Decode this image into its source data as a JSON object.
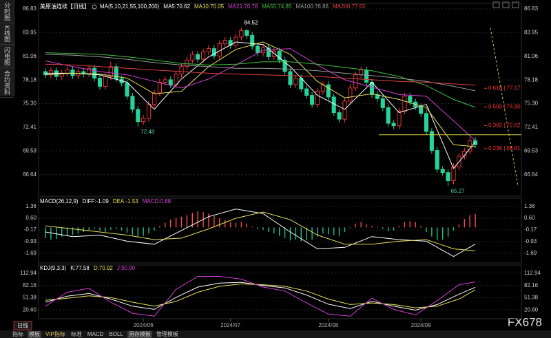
{
  "sidebar": [
    "分时图",
    "K线图",
    "闪电图",
    "合约资料"
  ],
  "toolbar": {
    "period": "日线",
    "tabs": [
      "指标",
      "模板",
      "VIP指标",
      "标准",
      "MACD",
      "BOLL",
      "另存模板",
      "管理模板"
    ]
  },
  "watermark": "FX678",
  "chart_data": [
    {
      "type": "candlestick",
      "title": "美原油连续【日线】",
      "indicator": "MA(5,10,21,55,100,200)",
      "categories": [
        null,
        null,
        null,
        null,
        null,
        null,
        null,
        null,
        null,
        null,
        null,
        null,
        null,
        null,
        null,
        null,
        null,
        null,
        "2024/06",
        null,
        null,
        null,
        null,
        null,
        null,
        null,
        null,
        null,
        null,
        null,
        null,
        null,
        null,
        null,
        "2024/07",
        null,
        null,
        null,
        null,
        null,
        null,
        null,
        null,
        null,
        null,
        null,
        null,
        null,
        null,
        null,
        null,
        null,
        "2024/08",
        null,
        null,
        null,
        null,
        null,
        null,
        null,
        null,
        null,
        null,
        null,
        null,
        null,
        null,
        null,
        null,
        "2024/09",
        null,
        null,
        null,
        null,
        null,
        null,
        null,
        null,
        null,
        null
      ],
      "open": [
        79.2,
        78.8,
        79.3,
        78.6,
        79.0,
        79.4,
        78.7,
        79.2,
        78.9,
        79.6,
        78.4,
        77.4,
        78.6,
        79.8,
        78.3,
        77.8,
        76.2,
        74.6,
        73.1,
        73.5,
        75.2,
        76.6,
        77.9,
        78.2,
        77.6,
        78.9,
        79.8,
        80.6,
        81.3,
        80.7,
        81.6,
        82.0,
        81.1,
        82.6,
        83.0,
        82.4,
        83.4,
        84.2,
        83.6,
        82.3,
        81.5,
        82.1,
        81.0,
        81.7,
        80.6,
        79.2,
        77.6,
        78.4,
        77.1,
        76.3,
        75.2,
        76.8,
        77.6,
        76.1,
        74.2,
        73.4,
        75.6,
        77.2,
        78.8,
        79.4,
        77.9,
        76.4,
        75.9,
        74.8,
        72.9,
        72.6,
        74.4,
        76.2,
        75.5,
        74.9,
        74.1,
        71.9,
        69.6,
        67.3,
        66.9,
        65.9,
        67.6,
        68.9,
        69.5,
        70.8
      ],
      "high": [
        79.6,
        79.7,
        79.7,
        79.4,
        79.8,
        79.8,
        79.6,
        79.6,
        80.0,
        80.0,
        78.8,
        79.0,
        80.4,
        80.2,
        78.7,
        78.2,
        76.6,
        75.0,
        73.9,
        75.6,
        77.0,
        78.3,
        78.6,
        78.6,
        79.3,
        80.2,
        81.0,
        81.7,
        81.7,
        82.0,
        82.4,
        82.4,
        83.0,
        83.4,
        83.4,
        83.8,
        84.52,
        84.4,
        84.0,
        82.7,
        82.5,
        82.5,
        82.1,
        82.1,
        81.0,
        79.6,
        78.8,
        78.8,
        77.5,
        76.7,
        77.2,
        78.0,
        78.0,
        76.5,
        74.6,
        76.0,
        77.6,
        79.2,
        79.8,
        79.8,
        78.3,
        76.8,
        76.3,
        75.2,
        73.3,
        74.8,
        76.6,
        76.6,
        75.9,
        75.3,
        74.5,
        72.3,
        70.0,
        67.7,
        67.3,
        68.0,
        69.3,
        69.9,
        71.2,
        71.2
      ],
      "low": [
        78.4,
        78.4,
        78.2,
        78.2,
        78.6,
        78.3,
        78.3,
        78.5,
        78.5,
        78.0,
        77.0,
        77.0,
        78.2,
        77.9,
        77.4,
        75.8,
        74.2,
        72.48,
        72.7,
        73.1,
        74.8,
        76.2,
        77.5,
        77.2,
        77.2,
        78.5,
        79.4,
        80.2,
        80.3,
        80.3,
        81.2,
        80.7,
        80.7,
        82.2,
        82.0,
        82.0,
        83.0,
        83.2,
        81.9,
        81.1,
        81.1,
        80.6,
        80.6,
        80.2,
        78.8,
        77.2,
        77.2,
        76.7,
        75.9,
        74.8,
        74.8,
        76.4,
        75.7,
        73.8,
        73.0,
        73.0,
        75.2,
        76.8,
        78.4,
        77.5,
        76.0,
        75.5,
        74.4,
        72.5,
        72.2,
        72.2,
        74.0,
        75.1,
        74.5,
        73.7,
        71.5,
        69.2,
        66.9,
        66.5,
        65.27,
        65.5,
        67.2,
        68.5,
        69.1,
        69.9
      ],
      "close": [
        78.8,
        79.3,
        78.6,
        79.0,
        79.4,
        78.7,
        79.2,
        78.9,
        79.6,
        78.4,
        77.4,
        78.6,
        79.8,
        78.3,
        77.8,
        76.2,
        74.6,
        73.1,
        73.5,
        75.2,
        76.6,
        77.9,
        78.2,
        77.6,
        78.9,
        79.8,
        80.6,
        81.3,
        80.7,
        81.6,
        82.0,
        81.1,
        82.6,
        83.0,
        82.4,
        83.4,
        84.2,
        83.6,
        82.3,
        81.5,
        82.1,
        81.0,
        81.7,
        80.6,
        79.2,
        77.6,
        78.4,
        77.1,
        76.3,
        75.2,
        76.8,
        77.6,
        76.1,
        74.2,
        73.4,
        75.6,
        77.2,
        78.8,
        79.4,
        77.9,
        76.4,
        75.9,
        74.8,
        72.9,
        72.6,
        74.4,
        76.2,
        75.5,
        74.9,
        74.1,
        71.9,
        69.6,
        67.3,
        66.9,
        65.9,
        67.6,
        68.9,
        69.5,
        70.8,
        70.3
      ],
      "up_color": "#ff3b3b",
      "down_color": "#27d39b",
      "series": [
        {
          "name": "MA5:70.62",
          "color": "#ffffff",
          "x": [
            0,
            5,
            10,
            15,
            20,
            25,
            30,
            35,
            40,
            45,
            50,
            55,
            60,
            65,
            70,
            75,
            79
          ],
          "values": [
            79.0,
            79.0,
            78.8,
            77.9,
            74.6,
            78.3,
            81.0,
            82.8,
            82.5,
            79.8,
            76.3,
            74.6,
            77.9,
            74.2,
            75.2,
            67.4,
            70.62
          ]
        },
        {
          "name": "MA10:70.05",
          "color": "#e6e05a",
          "x": [
            0,
            5,
            10,
            15,
            20,
            25,
            30,
            35,
            40,
            45,
            50,
            55,
            60,
            65,
            70,
            75,
            79
          ],
          "values": [
            78.8,
            79.0,
            78.9,
            78.4,
            76.5,
            76.8,
            79.8,
            81.9,
            82.8,
            81.3,
            78.0,
            76.0,
            76.5,
            75.8,
            74.8,
            70.3,
            70.05
          ]
        },
        {
          "name": "MA21:70.78",
          "color": "#d63fd6",
          "x": [
            0,
            5,
            10,
            15,
            20,
            25,
            30,
            35,
            40,
            45,
            50,
            55,
            60,
            65,
            70,
            75,
            79
          ],
          "values": [
            80.5,
            79.8,
            79.2,
            78.8,
            78.0,
            77.2,
            78.3,
            80.0,
            81.8,
            82.0,
            80.0,
            78.2,
            77.3,
            76.4,
            76.2,
            73.2,
            70.78
          ]
        },
        {
          "name": "MA55:74.85",
          "color": "#3fbf3f",
          "x": [
            0,
            5,
            10,
            15,
            20,
            25,
            30,
            35,
            40,
            45,
            50,
            55,
            60,
            65,
            70,
            75,
            79
          ],
          "values": [
            81.5,
            81.4,
            81.3,
            81.0,
            80.6,
            80.2,
            80.0,
            80.1,
            80.4,
            80.4,
            80.1,
            79.7,
            79.3,
            78.6,
            77.5,
            75.8,
            74.85
          ]
        },
        {
          "name": "MA100:76.86",
          "color": "#9a9a9a",
          "x": [
            0,
            5,
            10,
            15,
            20,
            25,
            30,
            35,
            40,
            45,
            50,
            55,
            60,
            65,
            70,
            75,
            79
          ],
          "values": [
            81.3,
            81.2,
            81.0,
            80.7,
            80.3,
            80.0,
            79.8,
            79.6,
            79.6,
            79.5,
            79.3,
            79.0,
            78.7,
            78.4,
            78.0,
            77.4,
            76.86
          ]
        },
        {
          "name": "MA200:77.55",
          "color": "#e04040",
          "x": [
            0,
            5,
            10,
            15,
            20,
            25,
            30,
            35,
            40,
            45,
            50,
            55,
            60,
            65,
            70,
            75,
            79
          ],
          "values": [
            80.1,
            80.0,
            79.8,
            79.6,
            79.4,
            79.2,
            79.0,
            78.9,
            78.8,
            78.7,
            78.6,
            78.4,
            78.2,
            78.0,
            77.9,
            77.7,
            77.55
          ]
        }
      ],
      "ylim": [
        64.02,
        87.5
      ],
      "yticks": [
        86.83,
        83.95,
        81.06,
        78.18,
        {
          "value": 75.3,
          "label": "75.30"
        },
        72.41,
        69.53,
        66.64
      ],
      "annotations": [
        84.52,
        72.48,
        65.27
      ],
      "fibonacci": [
        {
          "value": 77.17,
          "label": "0.618 | 77.17"
        },
        {
          "value": 74.9,
          "label": "0.500 | 74.90"
        },
        {
          "value": 72.62,
          "label": "0.382 | 72.62"
        },
        {
          "value": 69.81,
          "label": "0.236 | 69.81"
        }
      ],
      "reference_line": 71.5
    },
    {
      "type": "macd",
      "title": "MACD(26,12,9)",
      "series": [
        {
          "name": "DIFF:-1.09",
          "color": "#ffffff",
          "x": [
            0,
            5,
            10,
            15,
            20,
            25,
            30,
            35,
            40,
            45,
            50,
            55,
            60,
            65,
            70,
            75,
            79
          ],
          "values": [
            -0.3,
            -0.6,
            -0.5,
            -0.9,
            -1.1,
            -0.2,
            0.7,
            1.2,
            0.9,
            -0.3,
            -1.4,
            -1.3,
            -0.6,
            -0.8,
            -0.9,
            -1.9,
            -1.09
          ]
        },
        {
          "name": "DEA:-1.53",
          "color": "#e6e05a",
          "x": [
            0,
            5,
            10,
            15,
            20,
            25,
            30,
            35,
            40,
            45,
            50,
            55,
            60,
            65,
            70,
            75,
            79
          ],
          "values": [
            0.1,
            -0.1,
            -0.3,
            -0.5,
            -0.8,
            -0.7,
            -0.1,
            0.6,
            1.0,
            0.5,
            -0.5,
            -1.1,
            -1.1,
            -0.9,
            -0.8,
            -1.4,
            -1.53
          ]
        },
        {
          "name": "MACD:0.88",
          "color": "#e040e0",
          "type": "bar",
          "up_color": "#ff4a4a",
          "down_color": "#22c08a",
          "values": [
            -0.7,
            -0.8,
            -0.75,
            -0.6,
            -0.55,
            -0.5,
            -0.4,
            -0.3,
            -0.2,
            -0.1,
            -0.2,
            -0.3,
            -0.15,
            -0.1,
            -0.2,
            -0.35,
            -0.5,
            -0.6,
            -0.55,
            -0.4,
            -0.2,
            0.1,
            0.3,
            0.5,
            0.6,
            0.7,
            0.8,
            0.95,
            1.05,
            1.0,
            0.9,
            0.75,
            0.6,
            0.5,
            0.35,
            0.3,
            0.35,
            0.25,
            0.05,
            -0.1,
            -0.15,
            -0.3,
            -0.4,
            -0.55,
            -0.7,
            -0.85,
            -0.8,
            -0.9,
            -0.85,
            -0.8,
            -0.6,
            -0.4,
            -0.45,
            -0.5,
            -0.55,
            -0.3,
            -0.05,
            0.25,
            0.35,
            0.2,
            0.1,
            0.05,
            -0.1,
            -0.25,
            -0.2,
            0.1,
            0.35,
            0.4,
            0.35,
            0.1,
            -0.3,
            -0.6,
            -0.85,
            -0.8,
            -0.6,
            -0.2,
            0.2,
            0.55,
            0.8,
            0.88
          ]
        }
      ],
      "ylim": [
        -2.32,
        1.9
      ],
      "yticks": [
        1.36,
        {
          "value": 0.6,
          "label": "0.60"
        },
        -0.17,
        -0.93,
        -1.69
      ]
    },
    {
      "type": "line",
      "title": "KDJ(9,3,3)",
      "series": [
        {
          "name": "K:77.58",
          "color": "#ffffff",
          "x": [
            0,
            4,
            8,
            12,
            16,
            20,
            24,
            28,
            32,
            36,
            40,
            44,
            48,
            52,
            56,
            60,
            64,
            68,
            72,
            76,
            79
          ],
          "values": [
            40,
            55,
            62,
            48,
            30,
            22,
            52,
            78,
            88,
            90,
            82,
            76,
            58,
            35,
            24,
            42,
            30,
            20,
            34,
            60,
            77.58
          ]
        },
        {
          "name": "D:70.92",
          "color": "#e6e05a",
          "x": [
            0,
            4,
            8,
            12,
            16,
            20,
            24,
            28,
            32,
            36,
            40,
            44,
            48,
            52,
            56,
            60,
            64,
            68,
            72,
            76,
            79
          ],
          "values": [
            45,
            50,
            56,
            52,
            40,
            30,
            42,
            65,
            80,
            86,
            84,
            80,
            68,
            48,
            34,
            38,
            34,
            26,
            30,
            48,
            70.92
          ]
        },
        {
          "name": "J:90.90",
          "color": "#d63fd6",
          "x": [
            0,
            4,
            8,
            12,
            16,
            20,
            24,
            28,
            32,
            36,
            40,
            44,
            48,
            52,
            56,
            60,
            64,
            68,
            72,
            76,
            79
          ],
          "values": [
            30,
            65,
            75,
            40,
            12,
            5,
            72,
            105,
            105,
            98,
            78,
            68,
            38,
            10,
            5,
            50,
            22,
            8,
            44,
            84,
            90.9
          ]
        }
      ],
      "ylim": [
        -1.6,
        133.5
      ],
      "yticks": [
        112.94,
        82.16,
        51.38,
        {
          "value": 20.6,
          "label": "20.60"
        }
      ]
    }
  ]
}
